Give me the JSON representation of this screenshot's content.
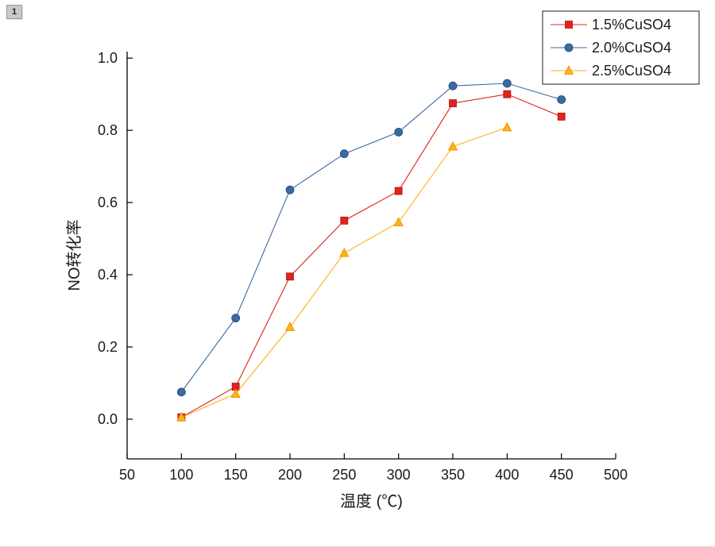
{
  "page_badge": "1",
  "chart_data": {
    "type": "line",
    "title": "",
    "xlabel": "温度 (℃)",
    "ylabel": "NO转化率",
    "xlim": [
      50,
      500
    ],
    "ylim": [
      -0.11,
      1.018
    ],
    "xticks": [
      50,
      100,
      150,
      200,
      250,
      300,
      350,
      400,
      450,
      500
    ],
    "yticks": [
      0.0,
      0.2,
      0.4,
      0.6,
      0.8,
      1.0
    ],
    "grid": false,
    "legend_position": "top-right",
    "x": [
      100,
      150,
      200,
      250,
      300,
      350,
      400,
      450
    ],
    "series": [
      {
        "name": "1.5%CuSO4",
        "marker": "square",
        "color": "#e1231e",
        "edge": "#a81410",
        "values": [
          0.005,
          0.09,
          0.395,
          0.55,
          0.632,
          0.875,
          0.9,
          0.838
        ]
      },
      {
        "name": "2.0%CuSO4",
        "marker": "circle",
        "color": "#3b6aa0",
        "edge": "#27496f",
        "values": [
          0.075,
          0.28,
          0.635,
          0.735,
          0.795,
          0.923,
          0.93,
          0.885
        ]
      },
      {
        "name": "2.5%CuSO4",
        "marker": "triangle",
        "color": "#fcb216",
        "edge": "#ef8c00",
        "values": [
          0.005,
          0.07,
          0.255,
          0.46,
          0.545,
          0.755,
          0.808,
          null
        ]
      }
    ]
  }
}
